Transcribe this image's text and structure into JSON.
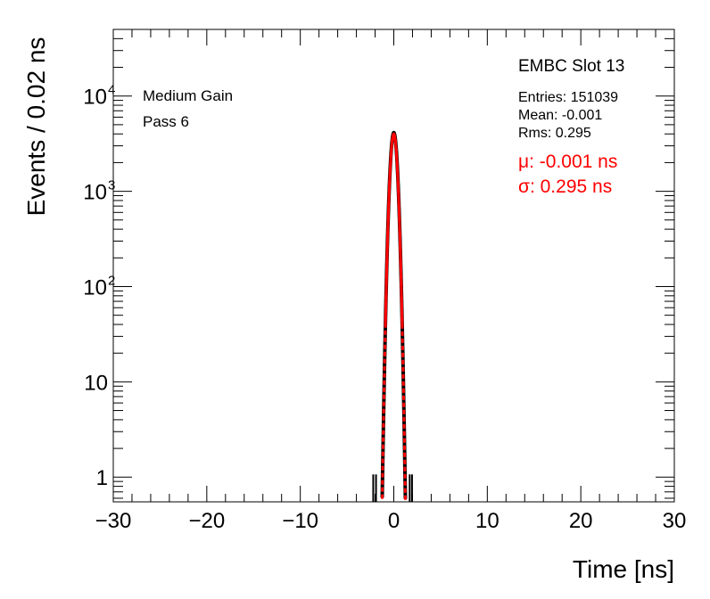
{
  "chart_data": {
    "type": "histogram",
    "xlabel": "Time [ns]",
    "ylabel": "Events / 0.02 ns",
    "xlim": [
      -30,
      30
    ],
    "ylim": [
      0.55,
      50000
    ],
    "yscale": "log",
    "grid": false,
    "x_ticks": [
      -30,
      -20,
      -10,
      0,
      10,
      20,
      30
    ],
    "x_tick_labels": [
      "−30",
      "−20",
      "−10",
      "0",
      "10",
      "20",
      "30"
    ],
    "y_ticks": [
      1,
      10,
      100,
      1000,
      10000
    ],
    "y_tick_labels": [
      {
        "base": "1",
        "exp": ""
      },
      {
        "base": "10",
        "exp": ""
      },
      {
        "base": "10",
        "exp": "2"
      },
      {
        "base": "10",
        "exp": "3"
      },
      {
        "base": "10",
        "exp": "4"
      }
    ],
    "annotations": {
      "gain": "Medium Gain",
      "pass": "Pass 6",
      "slot": "EMBC Slot 13",
      "entries": "Entries: 151039",
      "mean": "Mean: -0.001",
      "rms": "Rms: 0.295",
      "mu": "μ: -0.001 ns",
      "sigma": "σ: 0.295 ns"
    },
    "fit": {
      "function": "gaussian",
      "mean": -0.001,
      "sigma": 0.295,
      "amplitude": 4000,
      "color": "#ff0000"
    },
    "histogram_outliers": [
      {
        "x": -2.2,
        "y": 1
      },
      {
        "x": -1.9,
        "y": 1
      },
      {
        "x": 1.7,
        "y": 1
      },
      {
        "x": 1.95,
        "y": 1
      }
    ],
    "histogram_color": "#000000"
  }
}
